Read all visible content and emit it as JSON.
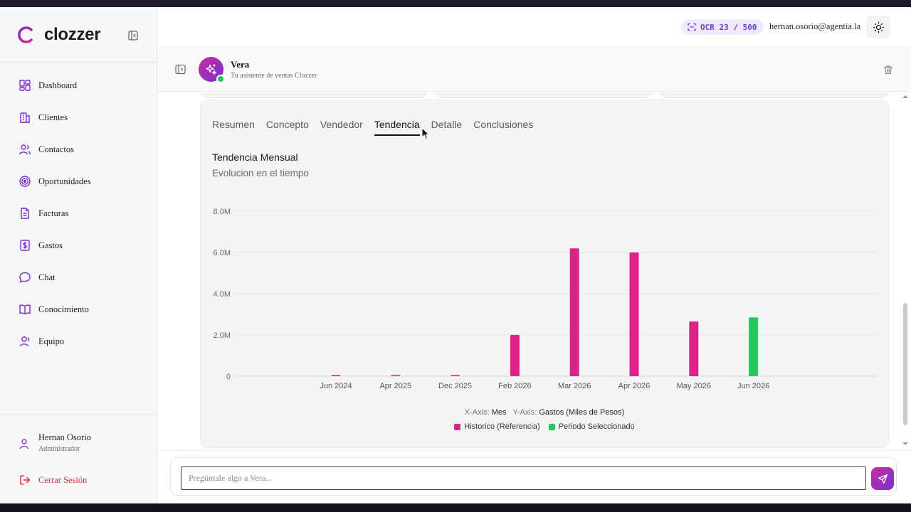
{
  "brand": {
    "name": "clozzer",
    "logo_icon": "clozzer-logo-icon",
    "accent": "#b3179a"
  },
  "sidebar": {
    "items": [
      {
        "label": "Dashboard",
        "icon": "dashboard-icon"
      },
      {
        "label": "Clientes",
        "icon": "building-icon"
      },
      {
        "label": "Contactos",
        "icon": "users-icon"
      },
      {
        "label": "Oportunidades",
        "icon": "target-icon"
      },
      {
        "label": "Facturas",
        "icon": "invoice-icon"
      },
      {
        "label": "Gastos",
        "icon": "dollar-receipt-icon"
      },
      {
        "label": "Chat",
        "icon": "chat-bubble-icon"
      },
      {
        "label": "Conocimiento",
        "icon": "book-icon"
      },
      {
        "label": "Equipo",
        "icon": "team-icon"
      }
    ],
    "user": {
      "name": "Hernan Osorio",
      "role": "Administrador"
    },
    "logout_label": "Cerrar Sesión",
    "icon_color": "#7b2fd0",
    "logout_color": "#d0303a"
  },
  "header": {
    "ocr_badge": "OCR 23 / 500",
    "email": "hernan.osorio@agentia.la"
  },
  "assistant": {
    "name": "Vera",
    "subtitle": "Tu asistente de ventas Clozzer",
    "status_color": "#22c55e"
  },
  "report": {
    "tabs": [
      {
        "label": "Resumen",
        "active": false
      },
      {
        "label": "Concepto",
        "active": false
      },
      {
        "label": "Vendedor",
        "active": false
      },
      {
        "label": "Tendencia",
        "active": true
      },
      {
        "label": "Detalle",
        "active": false
      },
      {
        "label": "Conclusiones",
        "active": false
      }
    ]
  },
  "chart_data": {
    "type": "bar",
    "title": "Tendencia Mensual",
    "subtitle": "Evolucion en el tiempo",
    "categories": [
      "Jun 2024",
      "Apr 2025",
      "Dec 2025",
      "Feb 2026",
      "Mar 2026",
      "Apr 2026",
      "May 2026",
      "Jun 2026"
    ],
    "series": [
      {
        "name": "Historico (Referencia)",
        "color": "#e0218a",
        "values": [
          0.05,
          0.05,
          0.05,
          2.0,
          6.2,
          6.0,
          2.65,
          null
        ]
      },
      {
        "name": "Periodo Seleccionado",
        "color": "#22c55e",
        "values": [
          null,
          null,
          null,
          null,
          null,
          null,
          null,
          2.85
        ]
      }
    ],
    "ylim": [
      0,
      8
    ],
    "yticks": [
      "0",
      "2.0M",
      "4.0M",
      "6.0M",
      "8.0M"
    ],
    "x_axis_prefix": "X-Axis:",
    "xlabel": "Mes",
    "y_axis_prefix": "Y-Axis:",
    "ylabel": "Gastos (Miles de Pesos)",
    "grid": true,
    "legend_position": "bottom-center"
  },
  "composer": {
    "placeholder": "Pregúntale algo a Vera..."
  }
}
